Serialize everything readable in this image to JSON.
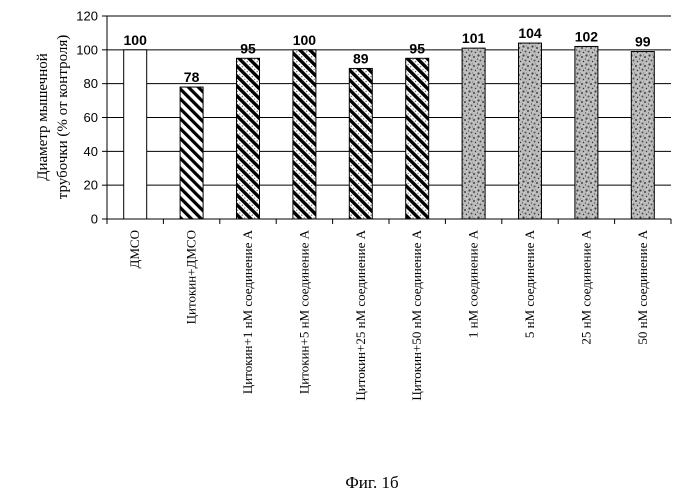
{
  "chart_data": {
    "type": "bar",
    "categories": [
      "ДМСО",
      "Цитокин+ДМСО",
      "Цитокин+1 нМ соединение А",
      "Цитокин+5 нМ соединение А",
      "Цитокин+25 нМ соединение А",
      "Цитокин+50 нМ соединение А",
      "1 нМ соединение А",
      "5 нМ соединение А",
      "25 нМ соединение А",
      "50 нМ соединение А"
    ],
    "values": [
      100,
      78,
      95,
      100,
      89,
      95,
      101,
      104,
      102,
      99
    ],
    "data_labels": [
      "100",
      "78",
      "95",
      "100",
      "89",
      "95",
      "101",
      "104",
      "102",
      "99"
    ],
    "patterns": [
      "white",
      "hatch",
      "hatch-dots",
      "hatch-dots",
      "hatch-dots",
      "hatch-dots",
      "stipple",
      "stipple",
      "stipple",
      "stipple"
    ],
    "ylabel_lines": [
      "Диаметр мышечной",
      "трубочки (% от контроля)"
    ],
    "xlabel": "",
    "ylim": [
      0,
      120
    ],
    "yticks": [
      0,
      20,
      40,
      60,
      80,
      100,
      120
    ],
    "grid": true,
    "caption": "Фиг. 1б"
  }
}
